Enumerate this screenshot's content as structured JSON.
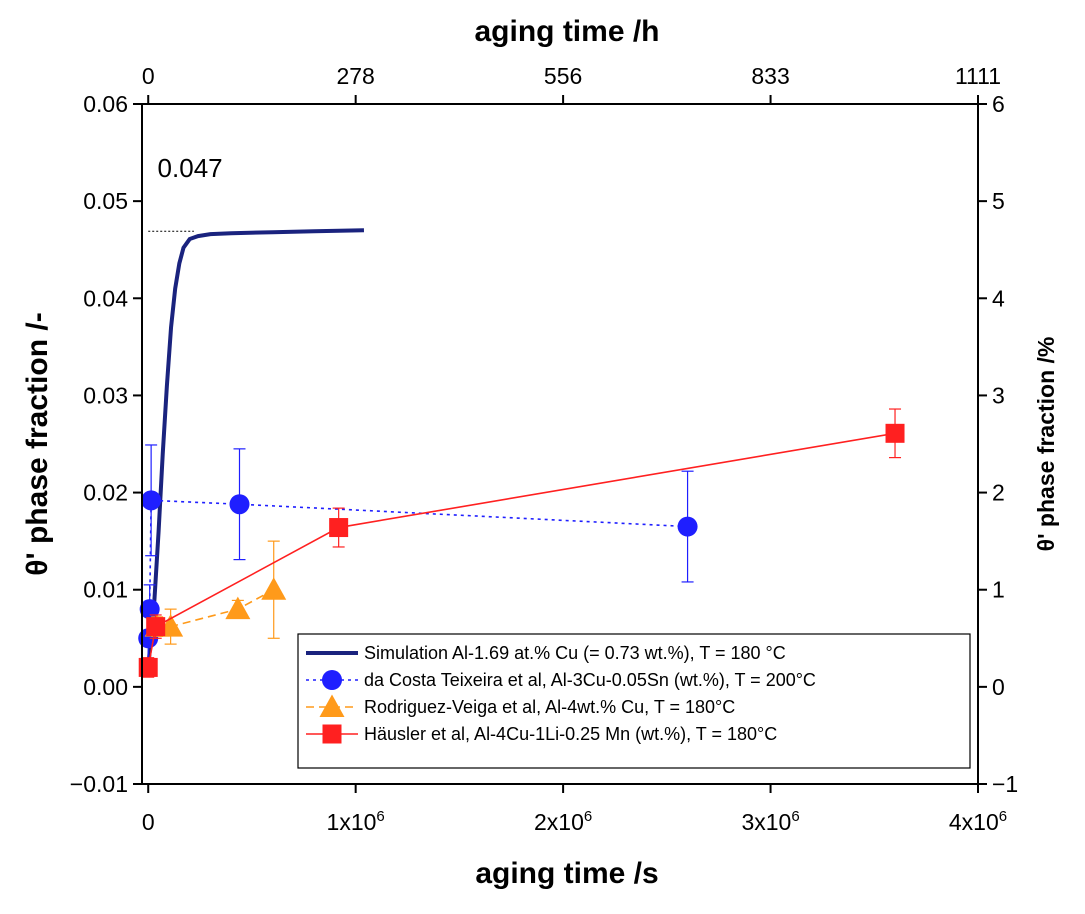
{
  "chart_data": {
    "type": "scatter",
    "top_xlabel": "aging time /h",
    "xlabel": "aging time /s",
    "ylabel": "θ' phase fraction /-",
    "y2label": "θ' phase fraction /%",
    "xlim": [
      -30000,
      4000000
    ],
    "ylim": [
      -0.01,
      0.06
    ],
    "y2lim": [
      -1,
      6
    ],
    "x_ticks": [
      {
        "value": 0,
        "label": "0"
      },
      {
        "value": 1000000,
        "label": "1x10^6"
      },
      {
        "value": 2000000,
        "label": "2x10^6"
      },
      {
        "value": 3000000,
        "label": "3x10^6"
      },
      {
        "value": 4000000,
        "label": "4x10^6"
      }
    ],
    "top_ticks": [
      {
        "value": 0,
        "label": "0"
      },
      {
        "value": 1000000,
        "label": "278"
      },
      {
        "value": 2000000,
        "label": "556"
      },
      {
        "value": 3000000,
        "label": "833"
      },
      {
        "value": 4000000,
        "label": "1111"
      }
    ],
    "y_ticks": [
      {
        "value": -0.01,
        "label": "−0.01"
      },
      {
        "value": 0.0,
        "label": "0.00"
      },
      {
        "value": 0.01,
        "label": "0.01"
      },
      {
        "value": 0.02,
        "label": "0.02"
      },
      {
        "value": 0.03,
        "label": "0.03"
      },
      {
        "value": 0.04,
        "label": "0.04"
      },
      {
        "value": 0.05,
        "label": "0.05"
      },
      {
        "value": 0.06,
        "label": "0.06"
      }
    ],
    "y2_ticks": [
      {
        "value": -1,
        "label": "−1"
      },
      {
        "value": 0,
        "label": "0"
      },
      {
        "value": 1,
        "label": "1"
      },
      {
        "value": 2,
        "label": "2"
      },
      {
        "value": 3,
        "label": "3"
      },
      {
        "value": 4,
        "label": "4"
      },
      {
        "value": 5,
        "label": "5"
      },
      {
        "value": 6,
        "label": "6"
      }
    ],
    "annotation": {
      "text": "0.047",
      "x": 45000,
      "y": 0.0525
    },
    "reference_line": {
      "x1": 0,
      "x2": 220000,
      "y": 0.0469
    },
    "legend_position": "lower-right",
    "series": [
      {
        "name": "Simulation Al-1.69 at.% Cu (= 0.73 wt.%), T = 180 °C",
        "style": "line",
        "color": "#1a237e",
        "dash": "",
        "x": [
          0,
          30000,
          50000,
          70000,
          90000,
          110000,
          130000,
          150000,
          170000,
          200000,
          240000,
          300000,
          400000,
          600000,
          800000,
          1040000
        ],
        "y": [
          0.002,
          0.009,
          0.016,
          0.024,
          0.031,
          0.037,
          0.041,
          0.0436,
          0.0452,
          0.0461,
          0.0464,
          0.0466,
          0.0467,
          0.0468,
          0.0469,
          0.047
        ]
      },
      {
        "name": "da Costa Teixeira et al, Al-3Cu-0.05Sn (wt.%), T = 200°C",
        "style": "marker-line",
        "marker": "circle",
        "color": "#1f1fff",
        "dash": "3,4",
        "x": [
          0,
          7000,
          14000,
          440000,
          2600000
        ],
        "y": [
          0.005,
          0.008,
          0.0192,
          0.0188,
          0.0165
        ],
        "err": [
          0.0025,
          0.0025,
          0.0057,
          0.0057,
          0.0057
        ]
      },
      {
        "name": "Rodriguez-Veiga et al, Al-4wt.% Cu, T = 180°C",
        "style": "marker-line",
        "marker": "triangle",
        "color": "#ff9a1a",
        "dash": "8,5",
        "x": [
          43000,
          108000,
          432000,
          605000
        ],
        "y": [
          0.0062,
          0.0062,
          0.008,
          0.01
        ],
        "err": [
          0.001,
          0.0018,
          0.0009,
          0.005
        ]
      },
      {
        "name": "Häusler et al, Al-4Cu-1Li-0.25 Mn (wt.%), T = 180°C",
        "style": "marker-line",
        "marker": "square",
        "color": "#ff2020",
        "dash": "",
        "x": [
          0,
          36000,
          918000,
          3600000
        ],
        "y": [
          0.002,
          0.0062,
          0.0164,
          0.0261
        ],
        "err": [
          0.001,
          0.0012,
          0.002,
          0.0025
        ]
      }
    ]
  }
}
